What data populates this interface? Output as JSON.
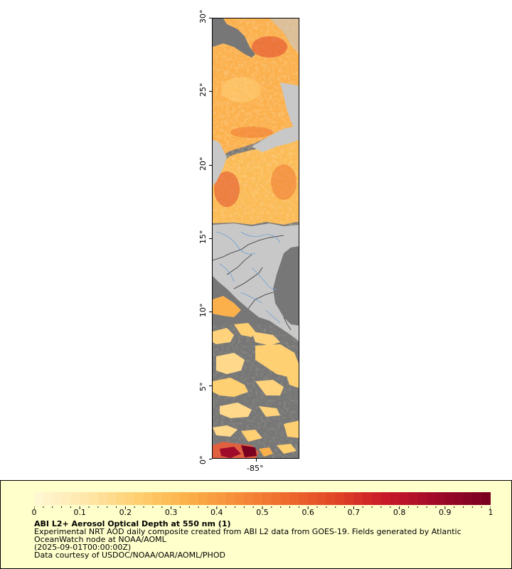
{
  "map": {
    "lat_labels": [
      "0°",
      "5°",
      "10°",
      "15°",
      "20°",
      "25°",
      "30°"
    ],
    "lon_labels": [
      "-85°"
    ],
    "colors": {
      "ocean_nodata": "#777777",
      "land": "#c8c8c8",
      "borders": "#333333",
      "rivers": "#6f9fd8"
    }
  },
  "legend": {
    "title": "ABI L2+ Aerosol Optical Depth at 550 nm (1)",
    "description": [
      "Experimental NRT AOD daily composite created from ABI L2 data from GOES-19. Fields generated by Atlantic",
      "OceanWatch node at NOAA/AOML"
    ],
    "time": "(2025-09-01T00:00:00Z)",
    "credit": "Data courtesy of USDOC/NOAA/OAR/AOML/PHOD",
    "colorbar": {
      "tick_labels": [
        "0",
        "0.1",
        "0.2",
        "0.3",
        "0.4",
        "0.5",
        "0.6",
        "0.7",
        "0.8",
        "0.9",
        "1"
      ],
      "min": 0,
      "max": 1,
      "colors": [
        "#fff6d2",
        "#ffe6a8",
        "#ffcf70",
        "#fbb048",
        "#f68c3a",
        "#ee6a2c",
        "#e04426",
        "#c8182a",
        "#a00a2a",
        "#7a0020"
      ]
    }
  }
}
